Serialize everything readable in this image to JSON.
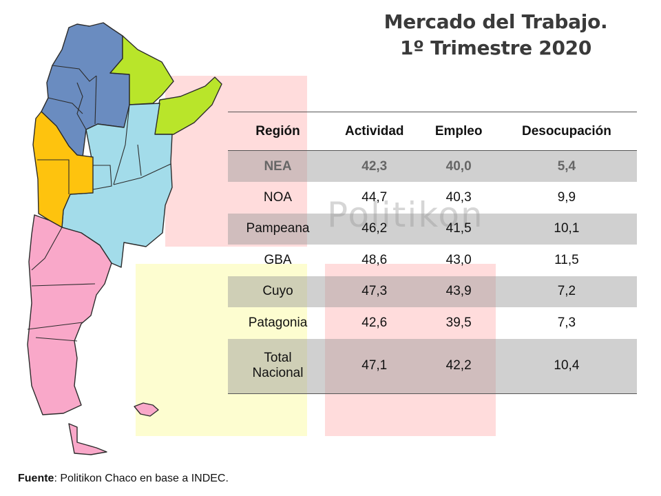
{
  "title": {
    "line1": "Mercado del Trabajo.",
    "line2": "1º Trimestre 2020"
  },
  "watermark": "Politikon",
  "table": {
    "headers": [
      "Región",
      "Actividad",
      "Empleo",
      "Desocupación"
    ],
    "rows": [
      {
        "region": "NEA",
        "actividad": "42,3",
        "empleo": "40,0",
        "desocupacion": "5,4"
      },
      {
        "region": "NOA",
        "actividad": "44,7",
        "empleo": "40,3",
        "desocupacion": "9,9"
      },
      {
        "region": "Pampeana",
        "actividad": "46,2",
        "empleo": "41,5",
        "desocupacion": "10,1"
      },
      {
        "region": "GBA",
        "actividad": "48,6",
        "empleo": "43,0",
        "desocupacion": "11,5"
      },
      {
        "region": "Cuyo",
        "actividad": "47,3",
        "empleo": "43,9",
        "desocupacion": "7,2"
      },
      {
        "region": "Patagonia",
        "actividad": "42,6",
        "empleo": "39,5",
        "desocupacion": "7,3"
      },
      {
        "region_line1": "Total",
        "region_line2": "Nacional",
        "actividad": "47,1",
        "empleo": "42,2",
        "desocupacion": "10,4"
      }
    ]
  },
  "source": {
    "label": "Fuente",
    "text": ": Politikon Chaco en base a INDEC."
  },
  "map": {
    "region_colors": {
      "NOA": "#6a8cc0",
      "NEA": "#b9e52a",
      "Cuyo": "#fec30e",
      "Pampeana": "#a3dcea",
      "Patagonia": "#f9a8c9"
    }
  }
}
